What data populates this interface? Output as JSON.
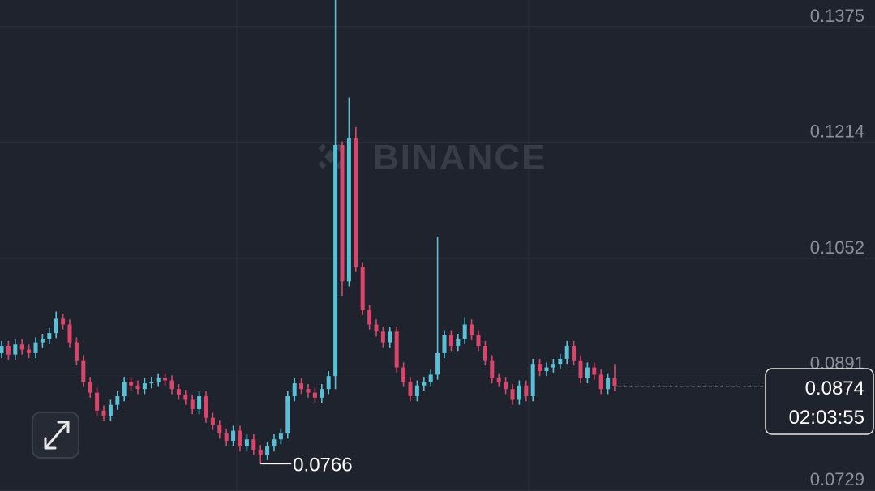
{
  "chart_data": {
    "type": "candlestick",
    "watermark": "BINANCE",
    "countdown": "02:03:55",
    "up_color": "#5bc0d6",
    "down_color": "#d9466c",
    "grid": true,
    "ylim": [
      0.0728,
      0.1412
    ],
    "yticks": [
      0.1375,
      0.1214,
      0.1052,
      0.0891,
      0.0729
    ],
    "open": [
      0.092,
      0.093,
      0.0918,
      0.0932,
      0.0925,
      0.092,
      0.0935,
      0.094,
      0.0948,
      0.0968,
      0.096,
      0.0935,
      0.091,
      0.088,
      0.0865,
      0.084,
      0.0832,
      0.0848,
      0.086,
      0.088,
      0.0875,
      0.087,
      0.0878,
      0.088,
      0.0885,
      0.0882,
      0.087,
      0.0862,
      0.0855,
      0.0842,
      0.086,
      0.083,
      0.082,
      0.0808,
      0.0798,
      0.0812,
      0.079,
      0.08,
      0.0785,
      0.0778,
      0.079,
      0.08,
      0.0808,
      0.086,
      0.0878,
      0.087,
      0.0865,
      0.0858,
      0.087,
      0.0888,
      0.121,
      0.102,
      0.122,
      0.104,
      0.098,
      0.096,
      0.095,
      0.0935,
      0.095,
      0.09,
      0.088,
      0.086,
      0.0875,
      0.088,
      0.089,
      0.092,
      0.0945,
      0.093,
      0.094,
      0.096,
      0.0945,
      0.093,
      0.091,
      0.0885,
      0.088,
      0.087,
      0.0855,
      0.0875,
      0.086,
      0.0905,
      0.0895,
      0.09,
      0.0905,
      0.0912,
      0.093,
      0.091,
      0.0885,
      0.09,
      0.089,
      0.087,
      0.0885
    ],
    "high": [
      0.0937,
      0.0937,
      0.0939,
      0.0939,
      0.0932,
      0.0942,
      0.0947,
      0.0955,
      0.0978,
      0.0975,
      0.0967,
      0.0942,
      0.0917,
      0.0887,
      0.0872,
      0.0847,
      0.0855,
      0.0867,
      0.0887,
      0.0887,
      0.0882,
      0.0885,
      0.0887,
      0.0892,
      0.0892,
      0.0889,
      0.0877,
      0.0869,
      0.0862,
      0.0867,
      0.0867,
      0.0837,
      0.0827,
      0.0815,
      0.0819,
      0.0819,
      0.0807,
      0.0807,
      0.0792,
      0.0797,
      0.0807,
      0.0815,
      0.0867,
      0.0885,
      0.0885,
      0.0877,
      0.0872,
      0.0877,
      0.0895,
      0.1412,
      0.1215,
      0.1276,
      0.1235,
      0.1047,
      0.0987,
      0.0967,
      0.0957,
      0.0957,
      0.0957,
      0.0907,
      0.0887,
      0.0882,
      0.0887,
      0.0897,
      0.1082,
      0.0952,
      0.0952,
      0.0947,
      0.097,
      0.0967,
      0.0952,
      0.0937,
      0.0917,
      0.0892,
      0.0887,
      0.0877,
      0.0882,
      0.0882,
      0.0912,
      0.0912,
      0.0907,
      0.0912,
      0.0919,
      0.0937,
      0.0937,
      0.0917,
      0.0907,
      0.0907,
      0.0897,
      0.0892,
      0.0905
    ],
    "low": [
      0.0913,
      0.0911,
      0.0911,
      0.0918,
      0.0913,
      0.0913,
      0.0928,
      0.0933,
      0.0941,
      0.0953,
      0.0928,
      0.0903,
      0.0873,
      0.0858,
      0.0833,
      0.0825,
      0.0825,
      0.0841,
      0.0853,
      0.0868,
      0.0863,
      0.0863,
      0.0871,
      0.0873,
      0.0875,
      0.0863,
      0.0855,
      0.0848,
      0.0835,
      0.0835,
      0.0823,
      0.0813,
      0.0801,
      0.0791,
      0.0791,
      0.0783,
      0.0783,
      0.0778,
      0.0766,
      0.0771,
      0.0783,
      0.0793,
      0.0801,
      0.0853,
      0.0863,
      0.0858,
      0.0851,
      0.0851,
      0.0863,
      0.087,
      0.1,
      0.1013,
      0.1033,
      0.0973,
      0.0953,
      0.0943,
      0.0928,
      0.0928,
      0.0893,
      0.0873,
      0.0853,
      0.0853,
      0.0868,
      0.0873,
      0.0883,
      0.0913,
      0.0923,
      0.0923,
      0.0933,
      0.0938,
      0.0923,
      0.0903,
      0.0878,
      0.0873,
      0.0863,
      0.0848,
      0.0848,
      0.0853,
      0.0853,
      0.0888,
      0.0888,
      0.0893,
      0.0898,
      0.0905,
      0.0903,
      0.0878,
      0.0878,
      0.0883,
      0.0863,
      0.0863,
      0.0867
    ],
    "close": [
      0.093,
      0.0918,
      0.0932,
      0.0925,
      0.092,
      0.0935,
      0.094,
      0.0948,
      0.0968,
      0.096,
      0.0935,
      0.091,
      0.088,
      0.0865,
      0.084,
      0.0832,
      0.0848,
      0.086,
      0.088,
      0.0875,
      0.087,
      0.0878,
      0.088,
      0.0885,
      0.0882,
      0.087,
      0.0862,
      0.0855,
      0.0842,
      0.086,
      0.083,
      0.082,
      0.0808,
      0.0798,
      0.0812,
      0.079,
      0.08,
      0.0785,
      0.0778,
      0.079,
      0.08,
      0.0808,
      0.086,
      0.0878,
      0.087,
      0.0865,
      0.0858,
      0.087,
      0.0888,
      0.121,
      0.102,
      0.122,
      0.104,
      0.098,
      0.096,
      0.095,
      0.0935,
      0.095,
      0.09,
      0.088,
      0.086,
      0.0875,
      0.088,
      0.089,
      0.092,
      0.0945,
      0.093,
      0.094,
      0.096,
      0.0945,
      0.093,
      0.091,
      0.0885,
      0.088,
      0.087,
      0.0855,
      0.0875,
      0.086,
      0.0905,
      0.0895,
      0.09,
      0.0905,
      0.0912,
      0.093,
      0.091,
      0.0885,
      0.09,
      0.089,
      0.087,
      0.0885,
      0.0874
    ]
  }
}
